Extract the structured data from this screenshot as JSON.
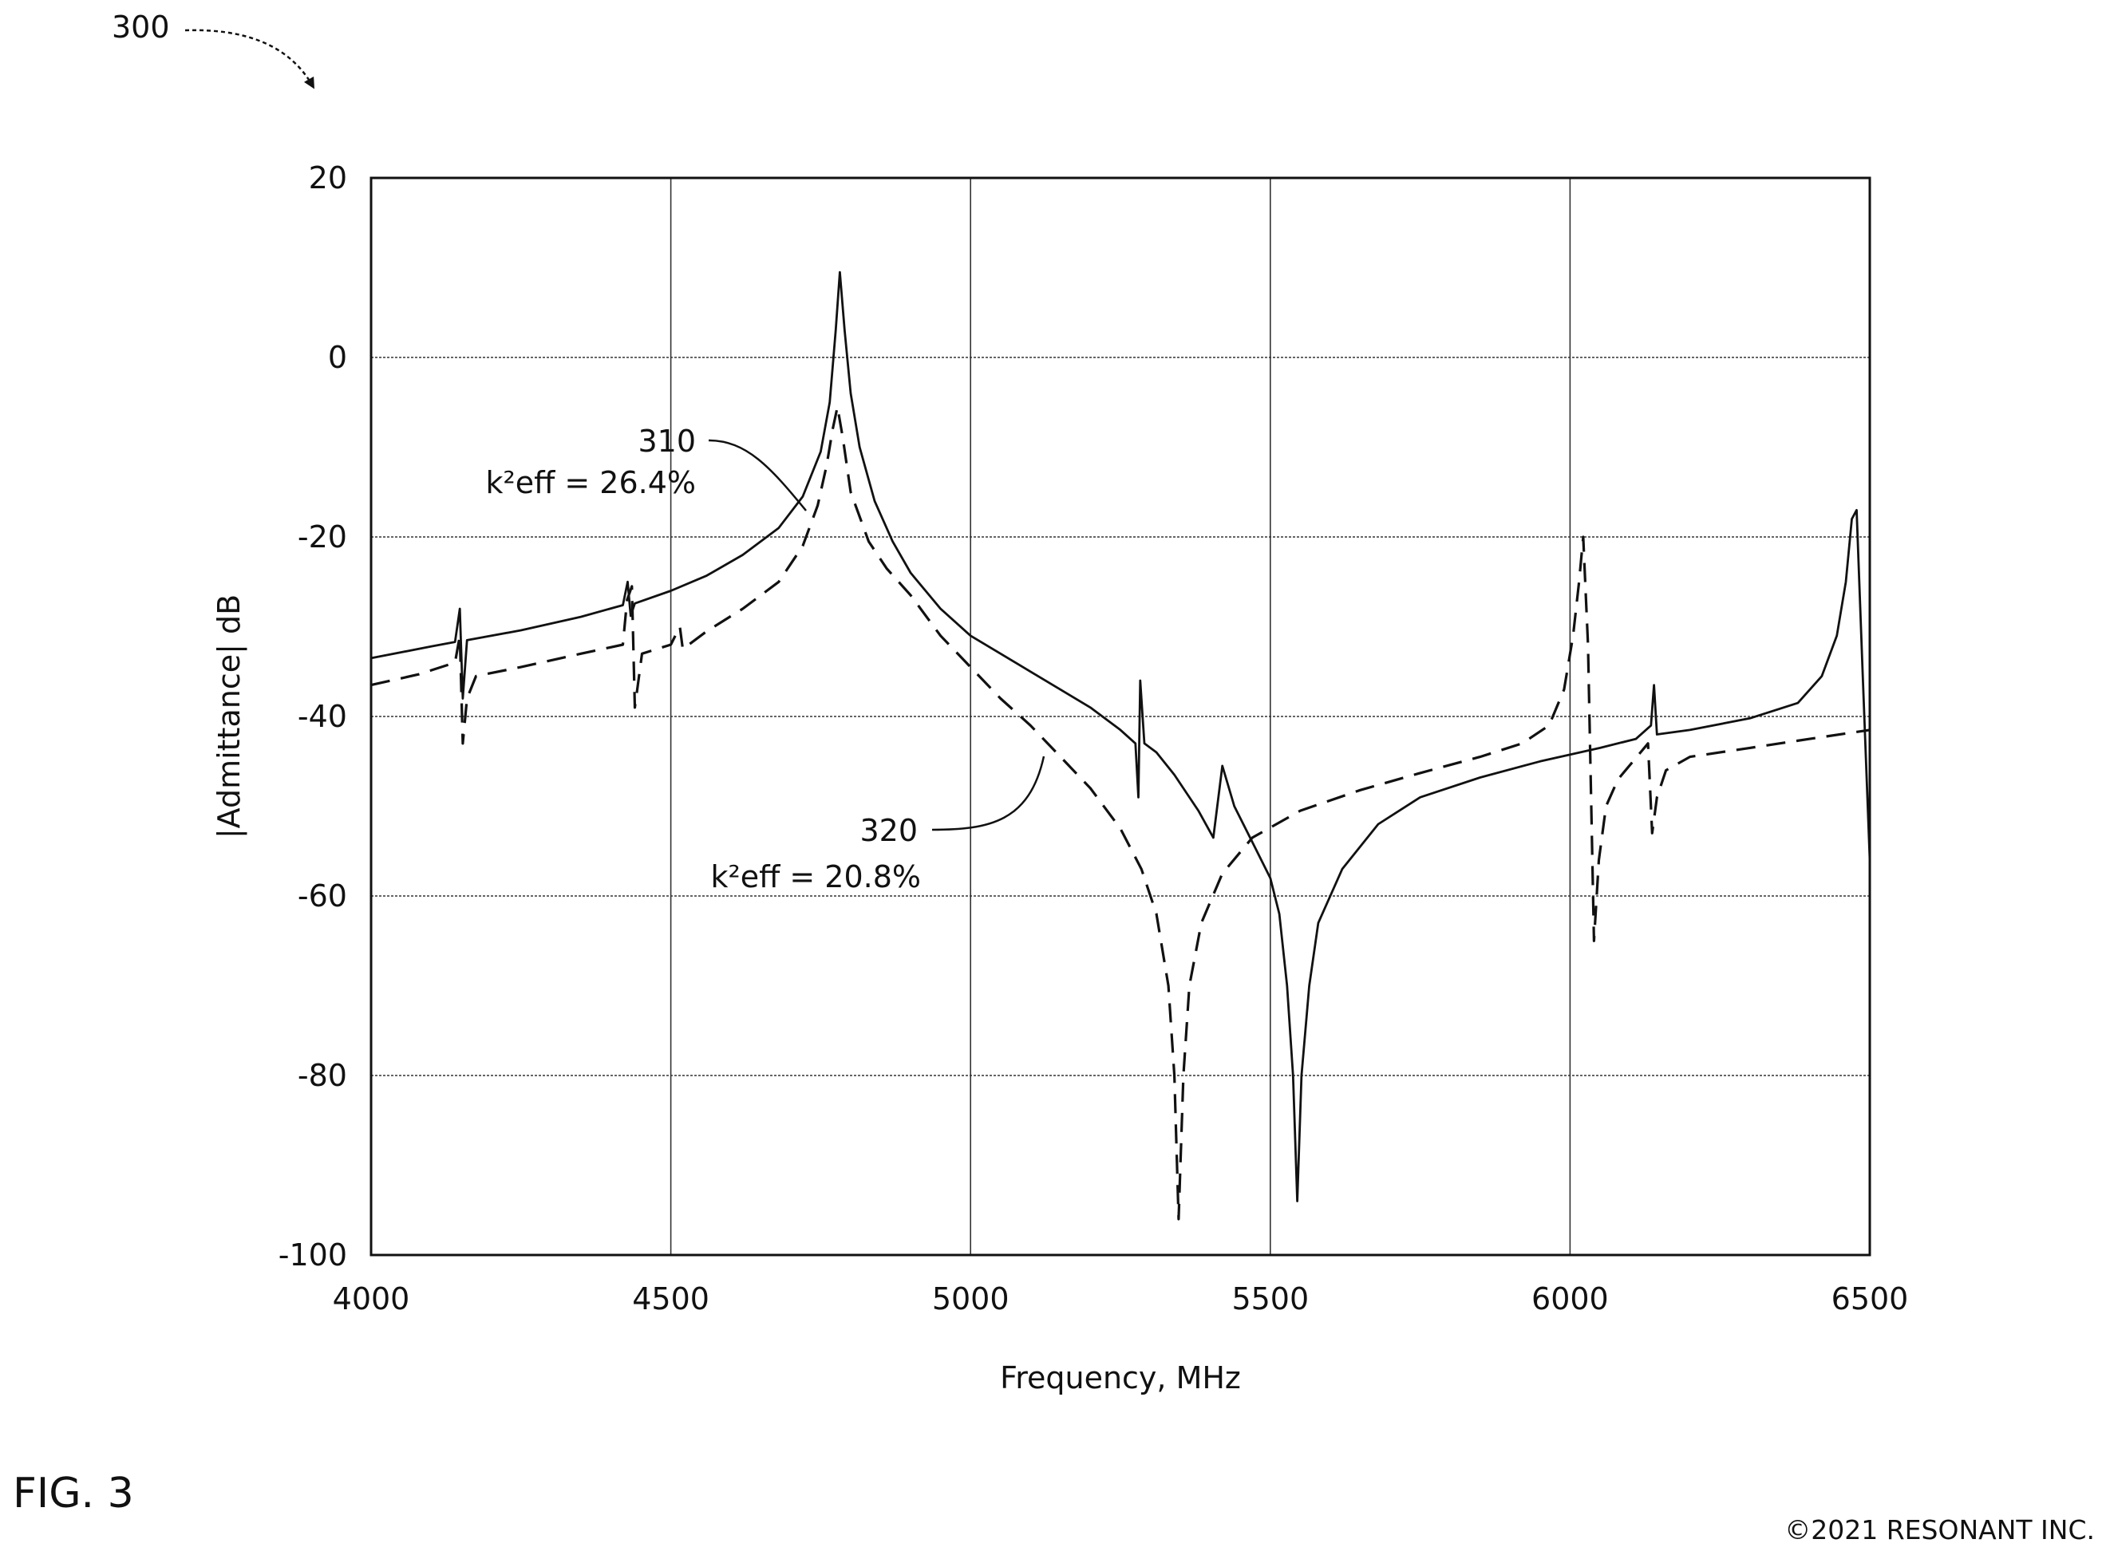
{
  "figure": {
    "reference": "300",
    "label": "FIG. 3",
    "copyright": "©2021 RESONANT INC."
  },
  "chart_data": {
    "type": "line",
    "title": "",
    "xlabel": "Frequency, MHz",
    "ylabel": "|Admittance| dB",
    "xlim": [
      4000,
      6500
    ],
    "ylim": [
      -100,
      20
    ],
    "xticks": [
      4000,
      4500,
      5000,
      5500,
      6000,
      6500
    ],
    "yticks": [
      20,
      0,
      -20,
      -40,
      -60,
      -80,
      -100
    ],
    "grid": true,
    "legend": "none",
    "series": [
      {
        "name": "310",
        "annotation": "k²eff = 26.4%",
        "style": "solid",
        "points": [
          [
            4000,
            -33.5
          ],
          [
            4100,
            -32.2
          ],
          [
            4140,
            -31.7
          ],
          [
            4148,
            -28
          ],
          [
            4153,
            -38
          ],
          [
            4160,
            -31.5
          ],
          [
            4250,
            -30.4
          ],
          [
            4350,
            -28.9
          ],
          [
            4420,
            -27.6
          ],
          [
            4428,
            -25
          ],
          [
            4433,
            -28.8
          ],
          [
            4440,
            -27.4
          ],
          [
            4500,
            -26.0
          ],
          [
            4560,
            -24.3
          ],
          [
            4620,
            -22.0
          ],
          [
            4680,
            -19.0
          ],
          [
            4720,
            -15.5
          ],
          [
            4750,
            -10.5
          ],
          [
            4765,
            -5.0
          ],
          [
            4775,
            3.0
          ],
          [
            4782,
            9.5
          ],
          [
            4790,
            3.0
          ],
          [
            4800,
            -4.0
          ],
          [
            4815,
            -10.0
          ],
          [
            4840,
            -16.0
          ],
          [
            4870,
            -20.5
          ],
          [
            4900,
            -24.0
          ],
          [
            4950,
            -28.0
          ],
          [
            5000,
            -31.0
          ],
          [
            5050,
            -33.0
          ],
          [
            5100,
            -35.0
          ],
          [
            5150,
            -37.0
          ],
          [
            5200,
            -39.0
          ],
          [
            5250,
            -41.5
          ],
          [
            5275,
            -43.0
          ],
          [
            5280,
            -49.0
          ],
          [
            5283,
            -36.0
          ],
          [
            5290,
            -43.0
          ],
          [
            5310,
            -44.0
          ],
          [
            5340,
            -46.5
          ],
          [
            5380,
            -50.5
          ],
          [
            5405,
            -53.5
          ],
          [
            5420,
            -45.5
          ],
          [
            5440,
            -50.0
          ],
          [
            5470,
            -54.0
          ],
          [
            5500,
            -58.0
          ],
          [
            5515,
            -62.0
          ],
          [
            5528,
            -70.0
          ],
          [
            5538,
            -80.0
          ],
          [
            5545,
            -94.0
          ],
          [
            5552,
            -80.0
          ],
          [
            5565,
            -70.0
          ],
          [
            5580,
            -63.0
          ],
          [
            5620,
            -57.0
          ],
          [
            5680,
            -52.0
          ],
          [
            5750,
            -49.0
          ],
          [
            5850,
            -46.8
          ],
          [
            5950,
            -45.0
          ],
          [
            6050,
            -43.5
          ],
          [
            6110,
            -42.5
          ],
          [
            6135,
            -41.0
          ],
          [
            6140,
            -36.5
          ],
          [
            6145,
            -42.0
          ],
          [
            6200,
            -41.5
          ],
          [
            6300,
            -40.2
          ],
          [
            6380,
            -38.5
          ],
          [
            6420,
            -35.5
          ],
          [
            6445,
            -31.0
          ],
          [
            6460,
            -25.0
          ],
          [
            6470,
            -18.0
          ],
          [
            6478,
            -17.0
          ],
          [
            6488,
            -35.0
          ],
          [
            6500,
            -56.0
          ]
        ]
      },
      {
        "name": "320",
        "annotation": "k²eff = 20.8%",
        "style": "dashed",
        "points": [
          [
            4000,
            -36.5
          ],
          [
            4080,
            -35.3
          ],
          [
            4140,
            -34.0
          ],
          [
            4148,
            -31.0
          ],
          [
            4153,
            -43.0
          ],
          [
            4160,
            -38.0
          ],
          [
            4175,
            -35.5
          ],
          [
            4250,
            -34.5
          ],
          [
            4350,
            -33.0
          ],
          [
            4420,
            -32.0
          ],
          [
            4427,
            -27.0
          ],
          [
            4435,
            -25.5
          ],
          [
            4440,
            -39.0
          ],
          [
            4452,
            -33.0
          ],
          [
            4500,
            -32.0
          ],
          [
            4515,
            -30.0
          ],
          [
            4520,
            -32.5
          ],
          [
            4560,
            -30.5
          ],
          [
            4620,
            -28.0
          ],
          [
            4680,
            -25.0
          ],
          [
            4720,
            -21.0
          ],
          [
            4745,
            -16.5
          ],
          [
            4760,
            -12.0
          ],
          [
            4770,
            -8.0
          ],
          [
            4778,
            -5.5
          ],
          [
            4787,
            -9.0
          ],
          [
            4800,
            -15.0
          ],
          [
            4830,
            -20.5
          ],
          [
            4860,
            -23.5
          ],
          [
            4900,
            -26.5
          ],
          [
            4950,
            -31.0
          ],
          [
            5000,
            -34.5
          ],
          [
            5050,
            -38.0
          ],
          [
            5100,
            -41.0
          ],
          [
            5150,
            -44.5
          ],
          [
            5200,
            -48.0
          ],
          [
            5250,
            -52.5
          ],
          [
            5285,
            -57.0
          ],
          [
            5310,
            -62.0
          ],
          [
            5330,
            -70.0
          ],
          [
            5340,
            -80.0
          ],
          [
            5347,
            -96.0
          ],
          [
            5355,
            -80.0
          ],
          [
            5365,
            -70.0
          ],
          [
            5385,
            -63.0
          ],
          [
            5420,
            -57.5
          ],
          [
            5470,
            -53.5
          ],
          [
            5550,
            -50.5
          ],
          [
            5650,
            -48.2
          ],
          [
            5750,
            -46.3
          ],
          [
            5850,
            -44.5
          ],
          [
            5920,
            -43.0
          ],
          [
            5965,
            -41.0
          ],
          [
            5990,
            -37.0
          ],
          [
            6005,
            -31.0
          ],
          [
            6015,
            -25.0
          ],
          [
            6022,
            -20.0
          ],
          [
            6030,
            -32.0
          ],
          [
            6040,
            -65.0
          ],
          [
            6048,
            -56.0
          ],
          [
            6060,
            -50.0
          ],
          [
            6080,
            -47.0
          ],
          [
            6105,
            -45.0
          ],
          [
            6130,
            -43.0
          ],
          [
            6137,
            -53.0
          ],
          [
            6145,
            -49.0
          ],
          [
            6160,
            -46.0
          ],
          [
            6200,
            -44.5
          ],
          [
            6300,
            -43.5
          ],
          [
            6400,
            -42.5
          ],
          [
            6500,
            -41.5
          ]
        ]
      }
    ]
  }
}
